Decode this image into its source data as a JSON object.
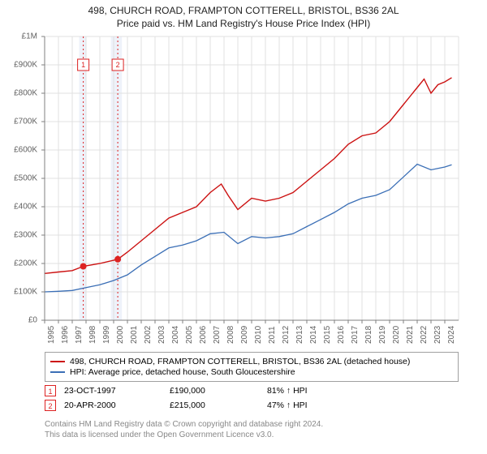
{
  "title_line1": "498, CHURCH ROAD, FRAMPTON COTTERELL, BRISTOL, BS36 2AL",
  "title_line2": "Price paid vs. HM Land Registry's House Price Index (HPI)",
  "chart": {
    "type": "line",
    "background_color": "#ffffff",
    "grid_color": "#e0e0e0",
    "axis_color": "#808080",
    "xlim": [
      1995,
      2025
    ],
    "ylim": [
      0,
      1000000
    ],
    "ytick_step": 100000,
    "ytick_labels": [
      "£0",
      "£100K",
      "£200K",
      "£300K",
      "£400K",
      "£500K",
      "£600K",
      "£700K",
      "£800K",
      "£900K",
      "£1M"
    ],
    "xtick_step": 1,
    "xtick_labels": [
      "1995",
      "1996",
      "1997",
      "1998",
      "1999",
      "2000",
      "2001",
      "2002",
      "2003",
      "2004",
      "2005",
      "2006",
      "2007",
      "2008",
      "2009",
      "2010",
      "2011",
      "2012",
      "2013",
      "2014",
      "2015",
      "2016",
      "2017",
      "2018",
      "2019",
      "2020",
      "2021",
      "2022",
      "2023",
      "2024"
    ],
    "highlight_bands": [
      {
        "x_start": 1997.5,
        "x_end": 1998.0,
        "color": "#eef2fa"
      },
      {
        "x_start": 1999.8,
        "x_end": 2000.6,
        "color": "#eef2fa"
      }
    ],
    "vlines": [
      {
        "x": 1997.8,
        "color": "#dd2222",
        "dash": "2,3"
      },
      {
        "x": 2000.3,
        "color": "#dd2222",
        "dash": "2,3"
      }
    ],
    "markers": [
      {
        "label": "1",
        "x": 1997.8,
        "y": 190000,
        "box_y": 920000
      },
      {
        "label": "2",
        "x": 2000.3,
        "y": 215000,
        "box_y": 920000
      }
    ],
    "series": [
      {
        "name": "property",
        "label": "498, CHURCH ROAD, FRAMPTON COTTERELL, BRISTOL, BS36 2AL (detached house)",
        "color": "#cc1111",
        "width": 1.4,
        "data": [
          [
            1995,
            165000
          ],
          [
            1996,
            170000
          ],
          [
            1997,
            175000
          ],
          [
            1997.8,
            190000
          ],
          [
            1999,
            200000
          ],
          [
            2000.3,
            215000
          ],
          [
            2001,
            240000
          ],
          [
            2002,
            280000
          ],
          [
            2003,
            320000
          ],
          [
            2004,
            360000
          ],
          [
            2005,
            380000
          ],
          [
            2006,
            400000
          ],
          [
            2007,
            450000
          ],
          [
            2007.8,
            480000
          ],
          [
            2008.3,
            440000
          ],
          [
            2009,
            390000
          ],
          [
            2010,
            430000
          ],
          [
            2011,
            420000
          ],
          [
            2012,
            430000
          ],
          [
            2013,
            450000
          ],
          [
            2014,
            490000
          ],
          [
            2015,
            530000
          ],
          [
            2016,
            570000
          ],
          [
            2017,
            620000
          ],
          [
            2018,
            650000
          ],
          [
            2019,
            660000
          ],
          [
            2020,
            700000
          ],
          [
            2021,
            760000
          ],
          [
            2022,
            820000
          ],
          [
            2022.5,
            850000
          ],
          [
            2023,
            800000
          ],
          [
            2023.5,
            830000
          ],
          [
            2024,
            840000
          ],
          [
            2024.5,
            855000
          ]
        ]
      },
      {
        "name": "hpi",
        "label": "HPI: Average price, detached house, South Gloucestershire",
        "color": "#3b6fb6",
        "width": 1.3,
        "data": [
          [
            1995,
            100000
          ],
          [
            1996,
            102000
          ],
          [
            1997,
            105000
          ],
          [
            1998,
            115000
          ],
          [
            1999,
            125000
          ],
          [
            2000,
            140000
          ],
          [
            2001,
            160000
          ],
          [
            2002,
            195000
          ],
          [
            2003,
            225000
          ],
          [
            2004,
            255000
          ],
          [
            2005,
            265000
          ],
          [
            2006,
            280000
          ],
          [
            2007,
            305000
          ],
          [
            2008,
            310000
          ],
          [
            2009,
            270000
          ],
          [
            2010,
            295000
          ],
          [
            2011,
            290000
          ],
          [
            2012,
            295000
          ],
          [
            2013,
            305000
          ],
          [
            2014,
            330000
          ],
          [
            2015,
            355000
          ],
          [
            2016,
            380000
          ],
          [
            2017,
            410000
          ],
          [
            2018,
            430000
          ],
          [
            2019,
            440000
          ],
          [
            2020,
            460000
          ],
          [
            2021,
            505000
          ],
          [
            2022,
            550000
          ],
          [
            2023,
            530000
          ],
          [
            2024,
            540000
          ],
          [
            2024.5,
            548000
          ]
        ]
      }
    ]
  },
  "legend": {
    "item1": "498, CHURCH ROAD, FRAMPTON COTTERELL, BRISTOL, BS36 2AL (detached house)",
    "item2": "HPI: Average price, detached house, South Gloucestershire"
  },
  "table": {
    "rows": [
      {
        "marker": "1",
        "date": "23-OCT-1997",
        "price": "£190,000",
        "note": "81% ↑ HPI"
      },
      {
        "marker": "2",
        "date": "20-APR-2000",
        "price": "£215,000",
        "note": "47% ↑ HPI"
      }
    ],
    "col_widths": {
      "date": "130px",
      "price": "120px",
      "note": "120px"
    }
  },
  "footer": {
    "line1": "Contains HM Land Registry data © Crown copyright and database right 2024.",
    "line2": "This data is licensed under the Open Government Licence v3.0."
  }
}
